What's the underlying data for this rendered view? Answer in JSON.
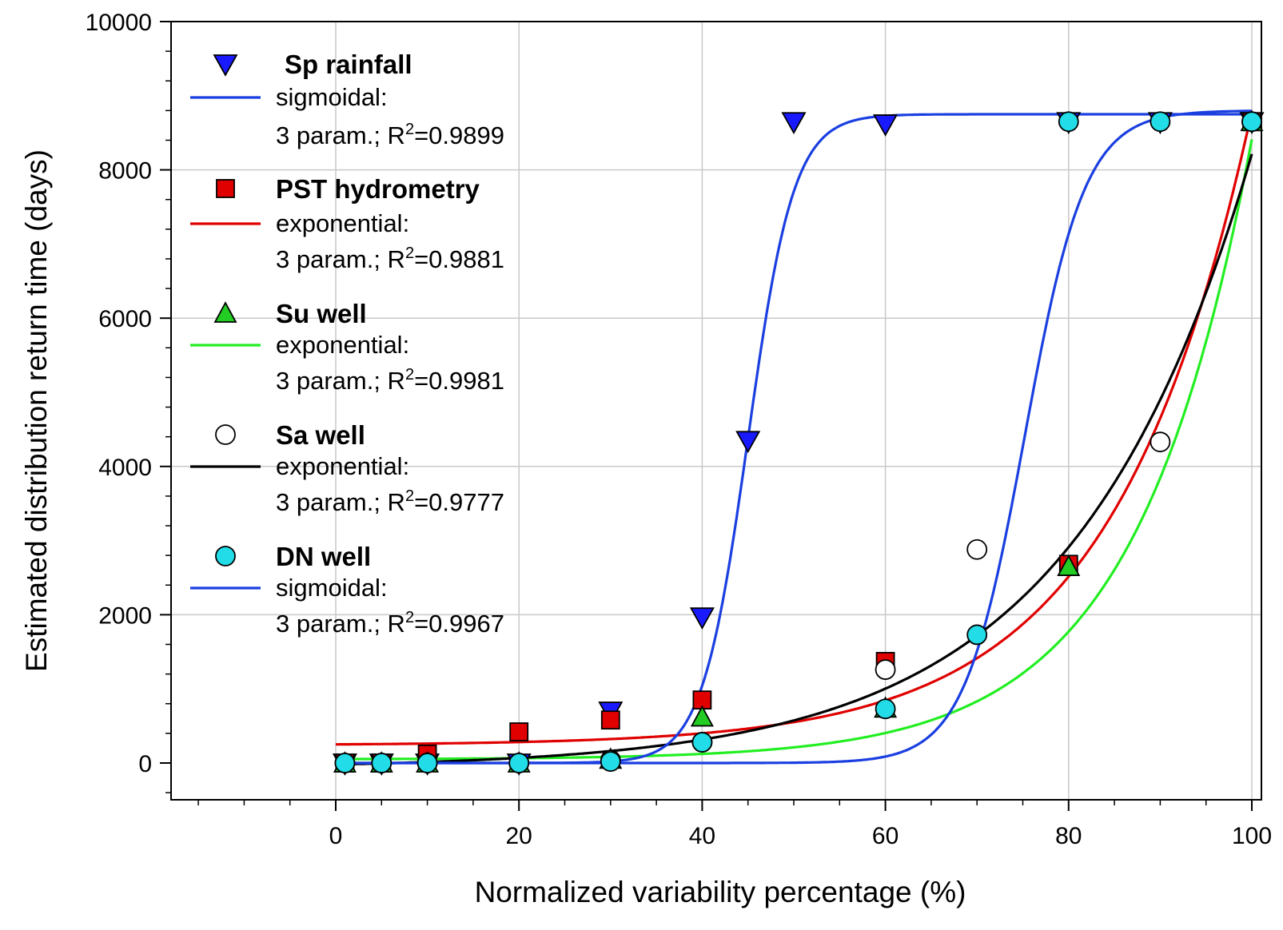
{
  "chart_data": {
    "type": "scatter",
    "xlabel": "Normalized variability percentage (%)",
    "ylabel": "Estimated distribution return time (days)",
    "xlim": [
      -18,
      103
    ],
    "ylim": [
      -470,
      10000
    ],
    "xticks": [
      0,
      20,
      40,
      60,
      80,
      100
    ],
    "yticks": [
      0,
      2000,
      4000,
      6000,
      8000,
      10000
    ],
    "xtick_labels": [
      "0",
      "20",
      "40",
      "60",
      "80",
      "100"
    ],
    "ytick_labels": [
      "0",
      "2000",
      "4000",
      "6000",
      "8000",
      "10000"
    ],
    "grid": true,
    "legend_position": "top-left",
    "series": [
      {
        "name": "Sp rainfall",
        "marker": "triangle-down",
        "color": "#1a1aff",
        "x": [
          1,
          5,
          10,
          20,
          30,
          40,
          45,
          50,
          60,
          80,
          90,
          100
        ],
        "y": [
          0,
          0,
          0,
          0,
          700,
          1970,
          4350,
          8650,
          8620,
          8650,
          8650,
          8650
        ],
        "fit": {
          "type": "sigmoidal",
          "label": "sigmoidal:",
          "params_label": "3 param.; R",
          "r2_value": "=0.9899",
          "color": "#1a3fe0",
          "a": 8750,
          "x0": 45,
          "b": 2.5
        }
      },
      {
        "name": "PST hydrometry",
        "marker": "square",
        "color": "#e00000",
        "x": [
          1,
          5,
          10,
          20,
          30,
          40,
          60,
          80,
          100
        ],
        "y": [
          0,
          0,
          120,
          420,
          580,
          850,
          1370,
          2680,
          8650
        ],
        "fit": {
          "type": "exponential",
          "label": "exponential:",
          "params_label": "3 param.; R",
          "r2_value": "=0.9881",
          "color": "#e00000",
          "y0": 240,
          "a": 11.4,
          "b": 0.0662
        }
      },
      {
        "name": "Su well",
        "marker": "triangle-up",
        "color": "#22cc22",
        "x": [
          1,
          5,
          10,
          20,
          30,
          40,
          60,
          80,
          100
        ],
        "y": [
          0,
          0,
          0,
          0,
          50,
          620,
          740,
          2650,
          8650
        ],
        "fit": {
          "type": "exponential",
          "label": "exponential:",
          "params_label": "3 param.; R",
          "r2_value": "=0.9981",
          "color": "#22ee22",
          "y0": 50,
          "a": 3.1,
          "b": 0.079
        }
      },
      {
        "name": "Sa well",
        "marker": "circle-open",
        "color": "#ffffff",
        "x": [
          1,
          5,
          10,
          20,
          30,
          40,
          60,
          70,
          90,
          100
        ],
        "y": [
          0,
          0,
          0,
          0,
          40,
          280,
          1260,
          2880,
          4330,
          8650
        ],
        "fit": {
          "type": "exponential",
          "label": "exponential:",
          "params_label": "3 param.; R",
          "r2_value": "=0.9777",
          "color": "#000000",
          "y0": -70,
          "a": 50,
          "b": 0.0511
        }
      },
      {
        "name": "DN well",
        "marker": "circle",
        "color": "#22dde8",
        "x": [
          1,
          5,
          10,
          20,
          30,
          40,
          60,
          70,
          80,
          90,
          100
        ],
        "y": [
          0,
          0,
          0,
          0,
          20,
          280,
          730,
          1730,
          8650,
          8650,
          8650
        ],
        "fit": {
          "type": "sigmoidal",
          "label": "sigmoidal:",
          "params_label": "3 param.; R",
          "r2_value": "=0.9967",
          "color": "#1a3fe0",
          "a": 8800,
          "x0": 75.2,
          "b": 3.3
        }
      }
    ]
  }
}
